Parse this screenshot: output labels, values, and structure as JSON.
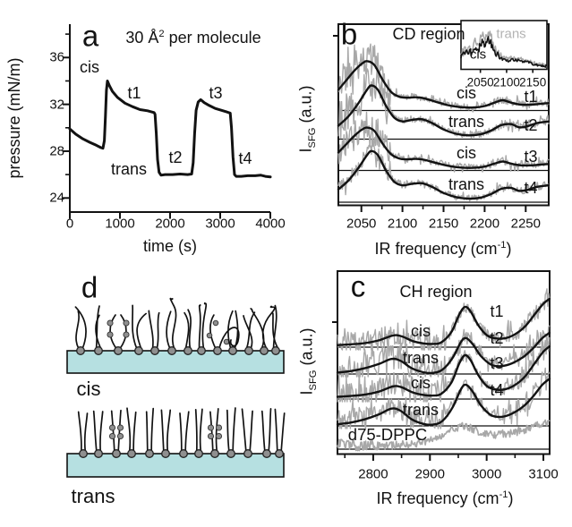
{
  "colors": {
    "black": "#121212",
    "gray_trace": "#a8a8a8",
    "gray_label": "#b3b3b3",
    "membrane_fill": "#b6e0e1",
    "head_fill": "#8f8f8f"
  },
  "chart_data": [
    {
      "id": "a",
      "type": "line",
      "panel_letter": "a",
      "title_parts": {
        "pre": "30 Å",
        "sup": "2",
        "post": " per molecule"
      },
      "xlabel": "time (s)",
      "ylabel": "pressure (mN/m)",
      "xlim": [
        0,
        4000
      ],
      "ylim": [
        22.8,
        38.85
      ],
      "xticks": [
        0,
        1000,
        2000,
        3000,
        4000
      ],
      "yticks": [
        24,
        28,
        32,
        36
      ],
      "yticks_minor": [
        26,
        30,
        34,
        38
      ],
      "series": [
        {
          "name": "surface pressure",
          "points": [
            [
              0,
              29.9
            ],
            [
              120,
              29.45
            ],
            [
              260,
              29.05
            ],
            [
              400,
              28.75
            ],
            [
              530,
              28.5
            ],
            [
              620,
              28.3
            ],
            [
              660,
              28.25
            ],
            [
              690,
              28.9
            ],
            [
              710,
              31.0
            ],
            [
              730,
              33.2
            ],
            [
              750,
              34.0
            ],
            [
              790,
              33.6
            ],
            [
              850,
              33.1
            ],
            [
              950,
              32.6
            ],
            [
              1100,
              32.1
            ],
            [
              1250,
              31.8
            ],
            [
              1400,
              31.55
            ],
            [
              1550,
              31.45
            ],
            [
              1680,
              31.3
            ],
            [
              1700,
              31.15
            ],
            [
              1725,
              29.5
            ],
            [
              1750,
              27.3
            ],
            [
              1780,
              26.2
            ],
            [
              1820,
              25.95
            ],
            [
              1900,
              26.0
            ],
            [
              2050,
              26.0
            ],
            [
              2200,
              26.05
            ],
            [
              2350,
              26.0
            ],
            [
              2430,
              26.05
            ],
            [
              2460,
              27.0
            ],
            [
              2490,
              29.5
            ],
            [
              2520,
              31.5
            ],
            [
              2560,
              32.2
            ],
            [
              2610,
              32.4
            ],
            [
              2680,
              32.15
            ],
            [
              2780,
              31.9
            ],
            [
              2900,
              31.65
            ],
            [
              3020,
              31.5
            ],
            [
              3130,
              31.35
            ],
            [
              3200,
              31.25
            ],
            [
              3225,
              30.0
            ],
            [
              3255,
              27.5
            ],
            [
              3285,
              26.0
            ],
            [
              3320,
              25.85
            ],
            [
              3420,
              25.85
            ],
            [
              3550,
              25.9
            ],
            [
              3700,
              25.9
            ],
            [
              3810,
              25.95
            ],
            [
              3900,
              25.85
            ],
            [
              4000,
              25.8
            ]
          ]
        }
      ],
      "annotations": [
        {
          "label": "cis",
          "t": 393,
          "p": 35.2
        },
        {
          "label": "t1",
          "t": 1286,
          "p": 33.0
        },
        {
          "label": "t2",
          "t": 2107,
          "p": 27.45
        },
        {
          "label": "t3",
          "t": 2911,
          "p": 33.0
        },
        {
          "label": "t4",
          "t": 3500,
          "p": 27.4
        },
        {
          "label": "trans",
          "t": 1179,
          "p": 26.45
        }
      ]
    },
    {
      "id": "b",
      "type": "stacked-spectra",
      "panel_letter": "b",
      "title": "CD region",
      "xlabel_parts": {
        "pre": "IR frequency (cm",
        "sup": "-1",
        "post": ")"
      },
      "ylabel_parts": {
        "main": "I",
        "sub": "SFG",
        "rest": " (a.u.)"
      },
      "xlim": [
        2022,
        2278
      ],
      "xticks": [
        2050,
        2100,
        2150,
        2200,
        2250
      ],
      "spectra": [
        {
          "state": "cis",
          "time_label": "t1",
          "shape": "cis",
          "amplitude": 1.0
        },
        {
          "state": "trans",
          "time_label": "t2",
          "shape": "trans",
          "amplitude": 1.09
        },
        {
          "state": "cis",
          "time_label": "t3",
          "shape": "cis",
          "amplitude": 0.87
        },
        {
          "state": "trans",
          "time_label": "t4",
          "shape": "trans",
          "amplitude": 1.04
        }
      ],
      "shapes": {
        "cis": [
          [
            2022,
            0.42
          ],
          [
            2032,
            0.62
          ],
          [
            2042,
            0.82
          ],
          [
            2052,
            0.97
          ],
          [
            2058,
            1.0
          ],
          [
            2066,
            0.92
          ],
          [
            2076,
            0.62
          ],
          [
            2086,
            0.38
          ],
          [
            2096,
            0.28
          ],
          [
            2106,
            0.26
          ],
          [
            2116,
            0.27
          ],
          [
            2126,
            0.25
          ],
          [
            2140,
            0.18
          ],
          [
            2155,
            0.11
          ],
          [
            2170,
            0.07
          ],
          [
            2185,
            0.06
          ],
          [
            2200,
            0.09
          ],
          [
            2212,
            0.16
          ],
          [
            2222,
            0.21
          ],
          [
            2232,
            0.16
          ],
          [
            2244,
            0.12
          ],
          [
            2258,
            0.12
          ],
          [
            2270,
            0.14
          ],
          [
            2278,
            0.15
          ]
        ],
        "trans": [
          [
            2022,
            0.25
          ],
          [
            2034,
            0.42
          ],
          [
            2046,
            0.66
          ],
          [
            2056,
            0.9
          ],
          [
            2062,
            1.0
          ],
          [
            2070,
            0.92
          ],
          [
            2080,
            0.62
          ],
          [
            2090,
            0.4
          ],
          [
            2100,
            0.33
          ],
          [
            2112,
            0.36
          ],
          [
            2124,
            0.37
          ],
          [
            2136,
            0.3
          ],
          [
            2150,
            0.18
          ],
          [
            2165,
            0.1
          ],
          [
            2180,
            0.07
          ],
          [
            2195,
            0.09
          ],
          [
            2208,
            0.16
          ],
          [
            2220,
            0.26
          ],
          [
            2232,
            0.28
          ],
          [
            2242,
            0.22
          ],
          [
            2252,
            0.24
          ],
          [
            2264,
            0.3
          ],
          [
            2278,
            0.33
          ]
        ]
      },
      "inset": {
        "xticks": [
          2050,
          2100,
          2150
        ],
        "traces": [
          {
            "name": "trans",
            "color_key": "gray"
          },
          {
            "name": "cis",
            "color_key": "black"
          }
        ],
        "fit": [
          [
            2013,
            0.4
          ],
          [
            2027,
            0.58
          ],
          [
            2033,
            0.48
          ],
          [
            2040,
            0.72
          ],
          [
            2047,
            0.6
          ],
          [
            2053,
            0.88
          ],
          [
            2059,
            0.7
          ],
          [
            2065,
            0.95
          ],
          [
            2071,
            0.78
          ],
          [
            2077,
            0.6
          ],
          [
            2085,
            0.4
          ],
          [
            2093,
            0.3
          ],
          [
            2102,
            0.27
          ],
          [
            2112,
            0.3
          ],
          [
            2124,
            0.27
          ],
          [
            2137,
            0.23
          ],
          [
            2150,
            0.17
          ],
          [
            2163,
            0.13
          ],
          [
            2175,
            0.1
          ],
          [
            2177,
            0.09
          ]
        ]
      }
    },
    {
      "id": "c",
      "type": "stacked-spectra",
      "panel_letter": "c",
      "title": "CH region",
      "xlabel_parts": {
        "pre": "IR frequency (cm",
        "sup": "-1",
        "post": ")"
      },
      "ylabel_parts": {
        "main": "I",
        "sub": "SFG",
        "rest": " (a.u.)"
      },
      "xlim": [
        2737,
        3111
      ],
      "xticks": [
        2800,
        2900,
        3000,
        3100
      ],
      "xticks_minor": [
        2750,
        2850,
        2950,
        3050
      ],
      "spectra": [
        {
          "state": "cis",
          "time_label": "t1",
          "shape": "cis",
          "amplitude": 1.0
        },
        {
          "state": "trans",
          "time_label": "t2",
          "shape": "trans",
          "amplitude": 0.89
        },
        {
          "state": "cis",
          "time_label": "t3",
          "shape": "cis",
          "amplitude": 1.09
        },
        {
          "state": "trans",
          "time_label": "t4",
          "shape": "trans",
          "amplitude": 1.02
        }
      ],
      "reference": {
        "name": "d75-DPPC",
        "shape": "d75",
        "amplitude": 1.2
      },
      "shapes": {
        "cis": [
          [
            2737,
            0.05
          ],
          [
            2760,
            0.07
          ],
          [
            2785,
            0.1
          ],
          [
            2810,
            0.17
          ],
          [
            2835,
            0.29
          ],
          [
            2850,
            0.27
          ],
          [
            2870,
            0.15
          ],
          [
            2890,
            0.09
          ],
          [
            2905,
            0.08
          ],
          [
            2920,
            0.12
          ],
          [
            2938,
            0.38
          ],
          [
            2952,
            0.82
          ],
          [
            2962,
            1.0
          ],
          [
            2972,
            0.88
          ],
          [
            2985,
            0.55
          ],
          [
            3000,
            0.3
          ],
          [
            3015,
            0.22
          ],
          [
            3032,
            0.22
          ],
          [
            3050,
            0.32
          ],
          [
            3068,
            0.52
          ],
          [
            3085,
            0.82
          ],
          [
            3100,
            1.08
          ],
          [
            3111,
            1.2
          ]
        ],
        "trans": [
          [
            2737,
            0.04
          ],
          [
            2760,
            0.08
          ],
          [
            2785,
            0.16
          ],
          [
            2810,
            0.28
          ],
          [
            2832,
            0.42
          ],
          [
            2848,
            0.37
          ],
          [
            2868,
            0.16
          ],
          [
            2888,
            0.05
          ],
          [
            2905,
            0.03
          ],
          [
            2922,
            0.12
          ],
          [
            2940,
            0.45
          ],
          [
            2955,
            0.9
          ],
          [
            2964,
            1.0
          ],
          [
            2976,
            0.82
          ],
          [
            2990,
            0.5
          ],
          [
            3008,
            0.26
          ],
          [
            3026,
            0.22
          ],
          [
            3045,
            0.3
          ],
          [
            3065,
            0.48
          ],
          [
            3082,
            0.72
          ],
          [
            3098,
            1.0
          ],
          [
            3111,
            1.15
          ]
        ],
        "d75": [
          [
            2737,
            0.12
          ],
          [
            2770,
            0.08
          ],
          [
            2800,
            0.07
          ],
          [
            2830,
            0.08
          ],
          [
            2860,
            0.1
          ],
          [
            2890,
            0.14
          ],
          [
            2915,
            0.22
          ],
          [
            2940,
            0.4
          ],
          [
            2958,
            0.48
          ],
          [
            2975,
            0.42
          ],
          [
            2995,
            0.33
          ],
          [
            3015,
            0.3
          ],
          [
            3040,
            0.33
          ],
          [
            3065,
            0.4
          ],
          [
            3085,
            0.48
          ],
          [
            3111,
            0.55
          ]
        ]
      }
    }
  ],
  "panel_d": {
    "panel_letter": "d",
    "rows": [
      {
        "label": "cis",
        "packing": "disordered"
      },
      {
        "label": "trans",
        "packing": "ordered"
      }
    ]
  }
}
